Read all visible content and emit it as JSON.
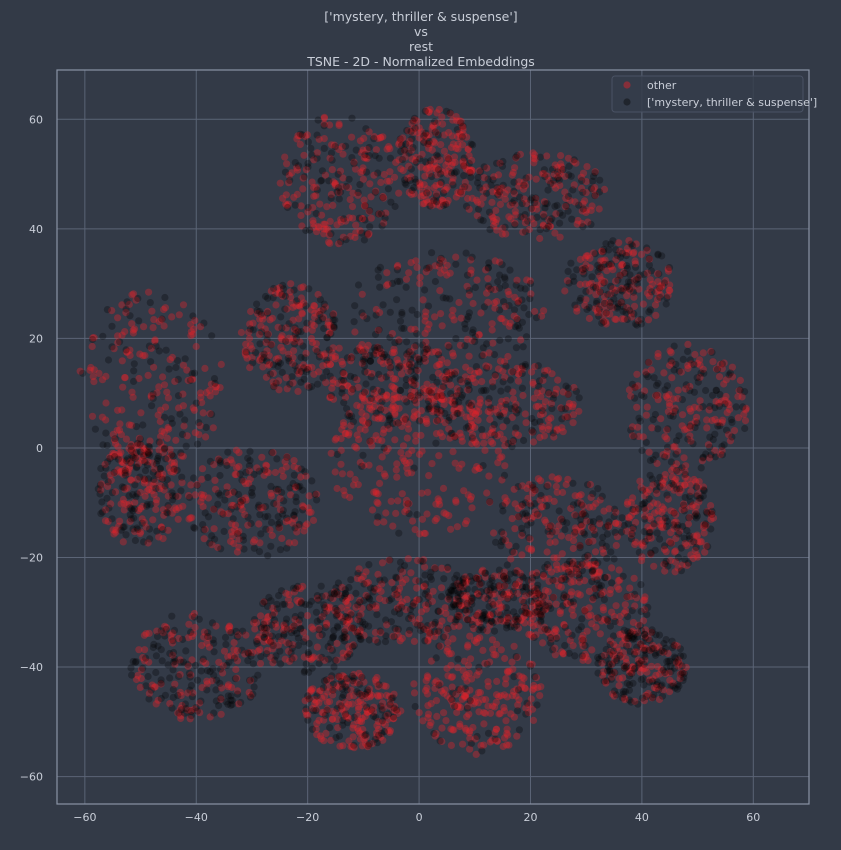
{
  "chart_data": {
    "type": "scatter",
    "title_lines": [
      "['mystery, thriller & suspense']",
      "vs",
      "rest",
      "TSNE - 2D - Normalized Embeddings"
    ],
    "xlabel": "",
    "ylabel": "",
    "xlim": [
      -65,
      70
    ],
    "ylim": [
      -65,
      69
    ],
    "xticks": [
      -60,
      -40,
      -20,
      0,
      20,
      40,
      60
    ],
    "yticks": [
      -60,
      -40,
      -20,
      0,
      20,
      40,
      60
    ],
    "grid": true,
    "legend_position": "top-right",
    "series": [
      {
        "name": "other",
        "color": "#e0212a",
        "opacity": 0.38
      },
      {
        "name": "['mystery, thriller & suspense']",
        "color": "#000000",
        "opacity": 0.28
      }
    ],
    "clusters": [
      {
        "cx": -48,
        "cy": 12,
        "rx": 13,
        "ry": 17,
        "mystery_share": 0.35
      },
      {
        "cx": -23,
        "cy": 20,
        "rx": 9,
        "ry": 10,
        "mystery_share": 0.35
      },
      {
        "cx": -14,
        "cy": 49,
        "rx": 11,
        "ry": 12,
        "mystery_share": 0.3
      },
      {
        "cx": 3,
        "cy": 53,
        "rx": 7,
        "ry": 9,
        "mystery_share": 0.3
      },
      {
        "cx": 21,
        "cy": 46,
        "rx": 13,
        "ry": 8,
        "mystery_share": 0.4
      },
      {
        "cx": 36,
        "cy": 30,
        "rx": 10,
        "ry": 8,
        "mystery_share": 0.45
      },
      {
        "cx": 48,
        "cy": 7,
        "rx": 11,
        "ry": 12,
        "mystery_share": 0.45
      },
      {
        "cx": 5,
        "cy": 25,
        "rx": 18,
        "ry": 11,
        "mystery_share": 0.5
      },
      {
        "cx": -30,
        "cy": -10,
        "rx": 12,
        "ry": 10,
        "mystery_share": 0.45
      },
      {
        "cx": -50,
        "cy": -8,
        "rx": 8,
        "ry": 10,
        "mystery_share": 0.4
      },
      {
        "cx": 0,
        "cy": -2,
        "rx": 16,
        "ry": 14,
        "mystery_share": 0.15
      },
      {
        "cx": 15,
        "cy": 8,
        "rx": 14,
        "ry": 8,
        "mystery_share": 0.4
      },
      {
        "cx": 25,
        "cy": -15,
        "rx": 12,
        "ry": 10,
        "mystery_share": 0.45
      },
      {
        "cx": 45,
        "cy": -13,
        "rx": 8,
        "ry": 10,
        "mystery_share": 0.4
      },
      {
        "cx": 30,
        "cy": -30,
        "rx": 12,
        "ry": 9,
        "mystery_share": 0.35
      },
      {
        "cx": 40,
        "cy": -40,
        "rx": 8,
        "ry": 7,
        "mystery_share": 0.6
      },
      {
        "cx": -40,
        "cy": -40,
        "rx": 12,
        "ry": 10,
        "mystery_share": 0.45
      },
      {
        "cx": -20,
        "cy": -33,
        "rx": 10,
        "ry": 8,
        "mystery_share": 0.5
      },
      {
        "cx": -3,
        "cy": -28,
        "rx": 13,
        "ry": 8,
        "mystery_share": 0.55
      },
      {
        "cx": 10,
        "cy": -45,
        "rx": 12,
        "ry": 11,
        "mystery_share": 0.15
      },
      {
        "cx": -12,
        "cy": -48,
        "rx": 9,
        "ry": 7,
        "mystery_share": 0.3
      },
      {
        "cx": 14,
        "cy": -28,
        "rx": 9,
        "ry": 6,
        "mystery_share": 0.55
      },
      {
        "cx": -5,
        "cy": 12,
        "rx": 12,
        "ry": 8,
        "mystery_share": 0.4
      }
    ],
    "points_per_cluster": 230
  },
  "colors": {
    "background": "#333a47",
    "grid": "#5b6476",
    "frame": "#8a93a5",
    "text": "#c9ced8"
  }
}
